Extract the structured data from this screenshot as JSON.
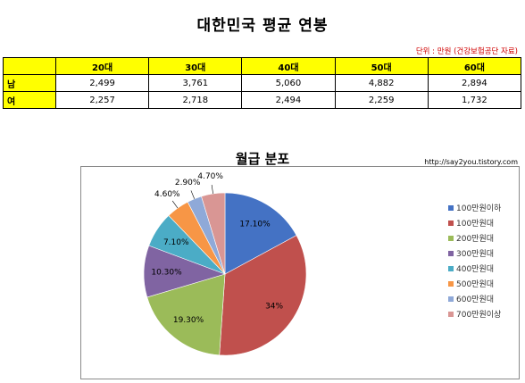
{
  "header": {
    "title": "대한민국 평균 연봉",
    "unit_note": "단위 : 만원 (건강보험공단 자료)"
  },
  "salary_table": {
    "columns": [
      "20대",
      "30대",
      "40대",
      "50대",
      "60대"
    ],
    "rows": [
      {
        "label": "남",
        "values": [
          "2,499",
          "3,761",
          "5,060",
          "4,882",
          "2,894"
        ]
      },
      {
        "label": "여",
        "values": [
          "2,257",
          "2,718",
          "2,494",
          "2,259",
          "1,732"
        ]
      }
    ]
  },
  "source_url": "http://say2you.tistory.com",
  "chart_data": {
    "type": "pie",
    "title": "월급 분포",
    "categories": [
      "100만원이하",
      "100만원대",
      "200만원대",
      "300만원대",
      "400만원대",
      "500만원대",
      "600만원대",
      "700만원이상"
    ],
    "values": [
      17.1,
      34,
      19.3,
      10.3,
      7.1,
      4.6,
      2.9,
      4.7
    ],
    "labels": [
      "17.10%",
      "34%",
      "19.30%",
      "10.30%",
      "7.10%",
      "4.60%",
      "2.90%",
      "4.70%"
    ],
    "colors": [
      "#4472C4",
      "#C0504D",
      "#9BBB59",
      "#8064A2",
      "#4BACC6",
      "#F79646",
      "#8FA9D8",
      "#D99694"
    ],
    "start_angle_deg": 0,
    "direction": "clockwise",
    "legend_position": "right"
  }
}
